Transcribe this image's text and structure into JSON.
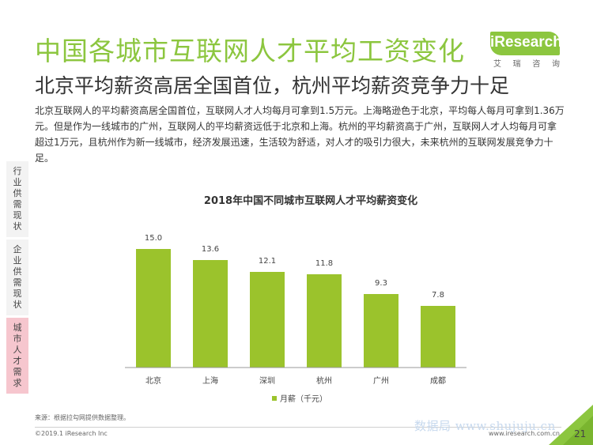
{
  "page": {
    "title": "中国各城市互联网人才平均工资变化",
    "subtitle": "北京平均薪资高居全国首位，杭州平均薪资竞争力十足",
    "description": "北京互联网人的平均薪资高居全国首位，互联网人才人均每月可拿到1.5万元。上海略逊色于北京，平均每人每月可拿到1.36万元。但是作为一线城市的广州，互联网人的平均薪资远低于北京和上海。杭州的平均薪资高于广州，互联网人才人均每月可拿超过1万元，且杭州作为新一线城市，经济发展迅速，生活较为舒适，对人才的吸引力很大，未来杭州的互联网发展竞争力十足。",
    "source": "来源：根据拉勾网提供数据整理。",
    "copyright": "©2019.1 iResearch Inc",
    "website": "www.iresearch.com.cn",
    "watermark": "数据局 www.shujuju.cn",
    "page_number": "21"
  },
  "logo": {
    "text": "iResearch",
    "sub_chars": [
      "艾",
      "瑞",
      "咨",
      "询"
    ],
    "color": "#8cc63f"
  },
  "sidebar": {
    "tabs": [
      {
        "label": "行业供需现状",
        "active": false
      },
      {
        "label": "企业供需现状",
        "active": false
      },
      {
        "label": "城市人才需求",
        "active": true
      }
    ]
  },
  "chart_data": {
    "type": "bar",
    "title": "2018年中国不同城市互联网人才平均薪资变化",
    "categories": [
      "北京",
      "上海",
      "深圳",
      "杭州",
      "广州",
      "成都"
    ],
    "series": [
      {
        "name": "月薪（千元）",
        "values": [
          15.0,
          13.6,
          12.1,
          11.8,
          9.3,
          7.8
        ],
        "color": "#9bc32c"
      }
    ],
    "value_labels": [
      "15.0",
      "13.6",
      "12.1",
      "11.8",
      "9.3",
      "7.8"
    ],
    "ylim": [
      0,
      17.5
    ],
    "grid": false,
    "legend_position": "bottom"
  }
}
